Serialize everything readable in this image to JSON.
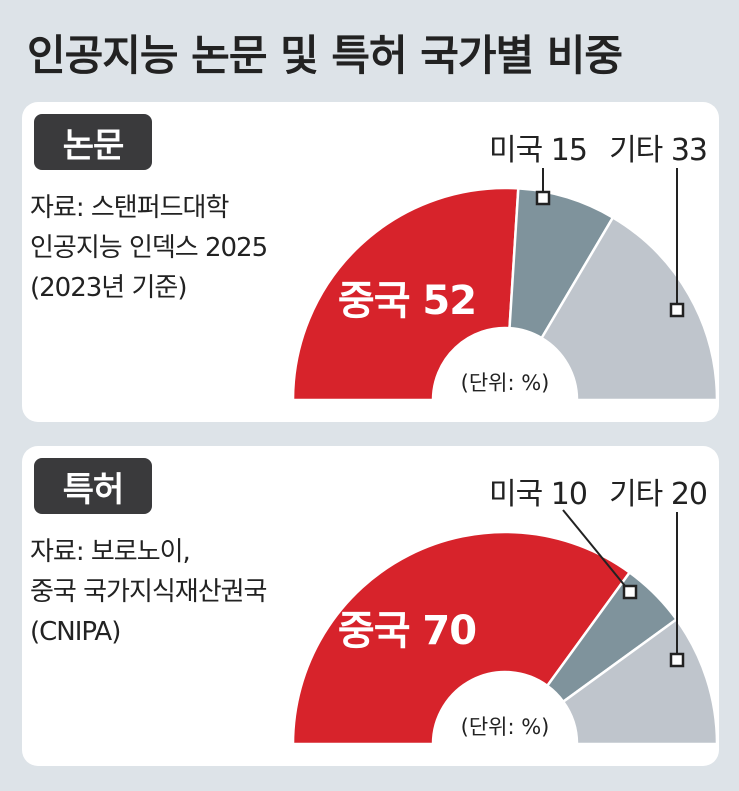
{
  "title": "인공지능 논문 및 특허 국가별 비중",
  "panels": [
    {
      "badge": "논문",
      "source_lines": [
        "자료: 스탠퍼드대학",
        "인공지능 인덱스 2025",
        "(2023년 기준)"
      ],
      "unit": "(단위: %)"
    },
    {
      "badge": "특허",
      "source_lines": [
        "자료: 보로노이,",
        "중국 국가지식재산권국",
        "(CNIPA)"
      ],
      "unit": "(단위: %)"
    }
  ],
  "colors": {
    "china": "#d7232b",
    "usa": "#7f939c",
    "other": "#bfc5cc"
  },
  "chart_data": [
    {
      "type": "pie",
      "title": "논문",
      "categories": [
        "중국",
        "미국",
        "기타"
      ],
      "values": [
        52,
        15,
        33
      ],
      "labels": [
        "중국 52",
        "미국 15",
        "기타 33"
      ],
      "unit": "%",
      "shape": "half-donut"
    },
    {
      "type": "pie",
      "title": "특허",
      "categories": [
        "중국",
        "미국",
        "기타"
      ],
      "values": [
        70,
        10,
        20
      ],
      "labels": [
        "중국 70",
        "미국 10",
        "기타 20"
      ],
      "unit": "%",
      "shape": "half-donut"
    }
  ]
}
